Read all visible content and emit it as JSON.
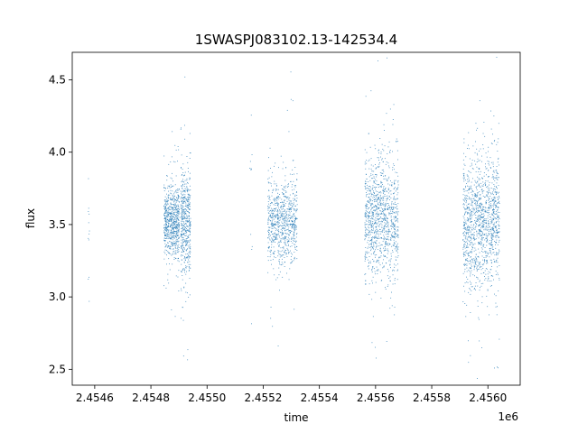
{
  "chart_data": {
    "type": "scatter",
    "title": "1SWASPJ083102.13-142534.4",
    "xlabel": "time",
    "ylabel": "flux",
    "x_offset_label": "1e6",
    "xlim": [
      2454520,
      2456115
    ],
    "ylim": [
      2.39,
      4.69
    ],
    "x_ticks": [
      2454600,
      2454800,
      2455000,
      2455200,
      2455400,
      2455600,
      2455800,
      2456000
    ],
    "x_tick_labels": [
      "2.4546",
      "2.4548",
      "2.4550",
      "2.4552",
      "2.4554",
      "2.4556",
      "2.4558",
      "2.4560"
    ],
    "y_ticks": [
      2.5,
      3.0,
      3.5,
      4.0,
      4.5
    ],
    "y_tick_labels": [
      "2.5",
      "3.0",
      "3.5",
      "4.0",
      "4.5"
    ],
    "grid": false,
    "marker_color": "#1f77b4",
    "series": [
      {
        "clusters": [
          {
            "x_range": [
              2454575,
              2454580
            ],
            "center": 3.45,
            "spread": 0.3,
            "count": 12
          },
          {
            "x_range": [
              2454845,
              2454900
            ],
            "center": 3.52,
            "spread": 0.12,
            "count": 700
          },
          {
            "x_range": [
              2454905,
              2454940
            ],
            "center": 3.52,
            "spread": 0.2,
            "count": 500
          },
          {
            "x_range": [
              2455150,
              2455160
            ],
            "center": 3.75,
            "spread": 0.4,
            "count": 12
          },
          {
            "x_range": [
              2455215,
              2455320
            ],
            "center": 3.52,
            "spread": 0.15,
            "count": 800
          },
          {
            "x_range": [
              2455560,
              2455680
            ],
            "center": 3.55,
            "spread": 0.2,
            "count": 1100
          },
          {
            "x_range": [
              2455910,
              2456040
            ],
            "center": 3.52,
            "spread": 0.22,
            "count": 1300
          }
        ]
      }
    ]
  }
}
